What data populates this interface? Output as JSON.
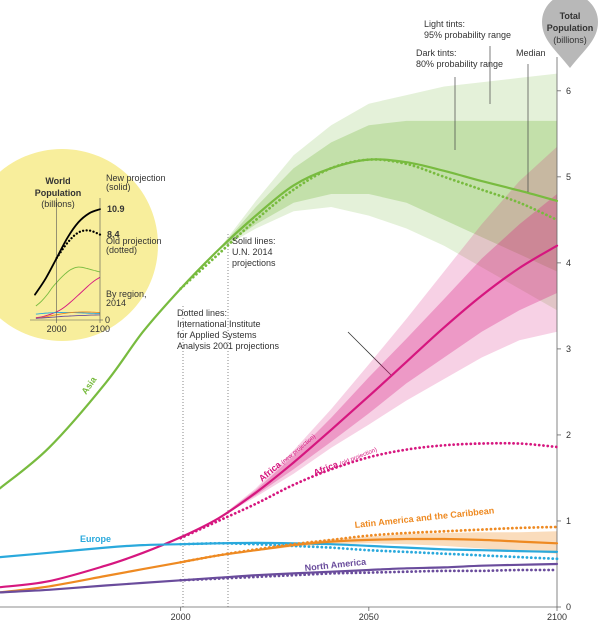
{
  "chart_data": [
    {
      "type": "line",
      "y_axis_title": [
        "Total",
        "Population",
        "(billions)"
      ],
      "x": [
        1952,
        1965,
        1980,
        1990,
        2000,
        2010,
        2020,
        2030,
        2040,
        2050,
        2060,
        2070,
        2080,
        2090,
        2100
      ],
      "xlim": [
        1952,
        2100
      ],
      "ylim": [
        0,
        6.3
      ],
      "xticks": [
        2000,
        2050,
        2100
      ],
      "yticks": [
        0,
        1,
        2,
        3,
        4,
        5,
        6
      ],
      "annotations": [
        {
          "lines": [
            "Light tints:",
            "95% probability range"
          ]
        },
        {
          "lines": [
            "Dark tints:",
            "80% probability range"
          ]
        },
        {
          "lines": [
            "Median"
          ]
        },
        {
          "lines": [
            "Solid lines:",
            "U.N. 2014",
            "projections"
          ]
        },
        {
          "lines": [
            "Dotted lines:",
            "International Institute",
            "for Applied Systems",
            "Analysis 2001 projections"
          ]
        }
      ],
      "series": [
        {
          "name": "Asia",
          "color": "#78bb3f",
          "values": [
            1.38,
            1.85,
            2.6,
            3.2,
            3.7,
            4.15,
            4.55,
            4.9,
            5.1,
            5.2,
            5.17,
            5.07,
            4.95,
            4.84,
            4.72
          ],
          "old_values": [
            null,
            null,
            null,
            null,
            3.7,
            4.1,
            4.5,
            4.85,
            5.1,
            5.2,
            5.15,
            5.0,
            4.85,
            4.7,
            4.5
          ],
          "band80_low": [
            null,
            null,
            null,
            null,
            null,
            4.15,
            4.45,
            4.7,
            4.8,
            4.8,
            4.7,
            4.5,
            4.3,
            4.1,
            3.9
          ],
          "band80_high": [
            null,
            null,
            null,
            null,
            null,
            4.15,
            4.65,
            5.1,
            5.4,
            5.6,
            5.65,
            5.65,
            5.65,
            5.65,
            5.65
          ],
          "band95_low": [
            null,
            null,
            null,
            null,
            null,
            4.15,
            4.4,
            4.6,
            4.65,
            4.55,
            4.4,
            4.2,
            3.95,
            3.7,
            3.45
          ],
          "band95_high": [
            null,
            null,
            null,
            null,
            null,
            4.15,
            4.72,
            5.25,
            5.6,
            5.85,
            5.95,
            6.05,
            6.1,
            6.15,
            6.2
          ]
        },
        {
          "name": "Africa",
          "name_note": "(new projection)",
          "old_name": "Africa",
          "old_note": "(old projection)",
          "color": "#d6177f",
          "values": [
            0.23,
            0.3,
            0.48,
            0.63,
            0.81,
            1.03,
            1.33,
            1.68,
            2.06,
            2.45,
            2.85,
            3.25,
            3.62,
            3.94,
            4.2
          ],
          "old_values": [
            null,
            null,
            null,
            null,
            0.8,
            1.0,
            1.2,
            1.42,
            1.6,
            1.74,
            1.83,
            1.88,
            1.9,
            1.9,
            1.86
          ],
          "band80_low": [
            null,
            null,
            null,
            null,
            null,
            1.03,
            1.3,
            1.6,
            1.92,
            2.25,
            2.6,
            2.9,
            3.2,
            3.45,
            3.65
          ],
          "band80_high": [
            null,
            null,
            null,
            null,
            null,
            1.03,
            1.36,
            1.76,
            2.2,
            2.67,
            3.12,
            3.58,
            4.05,
            4.45,
            4.8
          ],
          "band95_low": [
            null,
            null,
            null,
            null,
            null,
            1.03,
            1.28,
            1.55,
            1.85,
            2.12,
            2.4,
            2.65,
            2.9,
            3.1,
            3.2
          ],
          "band95_high": [
            null,
            null,
            null,
            null,
            null,
            1.03,
            1.38,
            1.82,
            2.3,
            2.82,
            3.35,
            3.9,
            4.45,
            4.95,
            5.35
          ]
        },
        {
          "name": "Europe",
          "color": "#2aa9dc",
          "values": [
            0.58,
            0.63,
            0.69,
            0.72,
            0.73,
            0.74,
            0.745,
            0.74,
            0.73,
            0.71,
            0.69,
            0.67,
            0.66,
            0.65,
            0.64
          ],
          "old_values": [
            null,
            null,
            null,
            null,
            0.73,
            0.74,
            0.73,
            0.71,
            0.69,
            0.66,
            0.64,
            0.62,
            0.6,
            0.58,
            0.56
          ]
        },
        {
          "name": "Latin America and the Caribbean",
          "color": "#ee8a22",
          "values": [
            0.17,
            0.24,
            0.36,
            0.44,
            0.52,
            0.6,
            0.66,
            0.72,
            0.76,
            0.78,
            0.79,
            0.79,
            0.78,
            0.76,
            0.74
          ],
          "old_values": [
            null,
            null,
            null,
            null,
            0.52,
            0.6,
            0.67,
            0.73,
            0.78,
            0.83,
            0.86,
            0.88,
            0.9,
            0.92,
            0.93
          ],
          "band80_low": [
            null,
            null,
            null,
            null,
            null,
            0.6,
            0.65,
            0.7,
            0.73,
            0.74,
            0.73,
            0.71,
            0.68,
            0.65,
            0.62
          ],
          "band80_high": [
            null,
            null,
            null,
            null,
            null,
            0.6,
            0.67,
            0.74,
            0.79,
            0.82,
            0.85,
            0.86,
            0.87,
            0.87,
            0.88
          ]
        },
        {
          "name": "North America",
          "color": "#6a4c9c",
          "values": [
            0.17,
            0.2,
            0.25,
            0.28,
            0.31,
            0.34,
            0.37,
            0.39,
            0.41,
            0.43,
            0.45,
            0.46,
            0.48,
            0.49,
            0.5
          ],
          "old_values": [
            null,
            null,
            null,
            null,
            0.31,
            0.33,
            0.35,
            0.37,
            0.39,
            0.4,
            0.41,
            0.42,
            0.42,
            0.43,
            0.43
          ]
        }
      ]
    },
    {
      "type": "line",
      "title": [
        "World",
        "Population"
      ],
      "subtitle": "(billions)",
      "x": [
        1950,
        1975,
        2000,
        2025,
        2050,
        2075,
        2100
      ],
      "xlim": [
        1950,
        2100
      ],
      "ylim": [
        0,
        12
      ],
      "xticks": [
        2000,
        2100
      ],
      "yticks": [
        0
      ],
      "regions_label": [
        "By region,",
        "2014"
      ],
      "series": [
        {
          "label": [
            "New projection",
            "(solid)"
          ],
          "color": "#000000",
          "style": "solid",
          "values": [
            2.5,
            4.1,
            6.1,
            8.1,
            9.6,
            10.5,
            10.9
          ]
        },
        {
          "label": [
            "Old projection",
            "(dotted)"
          ],
          "color": "#000000",
          "style": "dotted",
          "values": [
            null,
            null,
            6.1,
            7.6,
            8.6,
            8.8,
            8.4
          ]
        }
      ]
    }
  ]
}
